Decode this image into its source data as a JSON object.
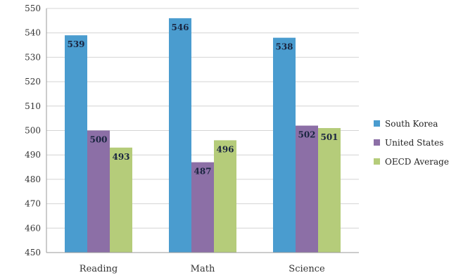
{
  "chart_data": {
    "type": "bar",
    "categories": [
      "Reading",
      "Math",
      "Science"
    ],
    "series": [
      {
        "name": "South Korea",
        "values": [
          539,
          546,
          538
        ],
        "color": "#4a9ccf"
      },
      {
        "name": "United States",
        "values": [
          500,
          487,
          502
        ],
        "color": "#8c6fa6"
      },
      {
        "name": "OECD Average",
        "values": [
          493,
          496,
          501
        ],
        "color": "#b5cc7a"
      }
    ],
    "title": "",
    "xlabel": "",
    "ylabel": "",
    "ylim": [
      450,
      550
    ],
    "yticks": [
      450,
      460,
      470,
      480,
      490,
      500,
      510,
      520,
      530,
      540,
      550
    ],
    "grid": true,
    "legend": "right",
    "data_labels": true
  }
}
